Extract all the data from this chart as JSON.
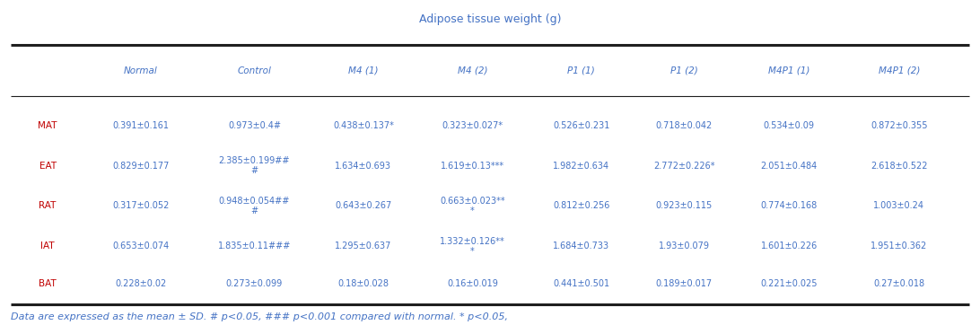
{
  "title": "Adipose tissue weight (g)",
  "col_headers": [
    "",
    "Normal",
    "Control",
    "M4 (1)",
    "M4 (2)",
    "P1 (1)",
    "P1 (2)",
    "M4P1 (1)",
    "M4P1 (2)"
  ],
  "rows": [
    {
      "label": "MAT",
      "values": [
        "0.391±0.161",
        "0.973±0.4#",
        "0.438±0.137*",
        "0.323±0.027*",
        "0.526±0.231",
        "0.718±0.042",
        "0.534±0.09",
        "0.872±0.355"
      ]
    },
    {
      "label": "EAT",
      "values": [
        "0.829±0.177",
        "2.385±0.199##\n#",
        "1.634±0.693",
        "1.619±0.13***",
        "1.982±0.634",
        "2.772±0.226*",
        "2.051±0.484",
        "2.618±0.522"
      ]
    },
    {
      "label": "RAT",
      "values": [
        "0.317±0.052",
        "0.948±0.054##\n#",
        "0.643±0.267",
        "0.663±0.023**\n*",
        "0.812±0.256",
        "0.923±0.115",
        "0.774±0.168",
        "1.003±0.24"
      ]
    },
    {
      "label": "IAT",
      "values": [
        "0.653±0.074",
        "1.835±0.11###",
        "1.295±0.637",
        "1.332±0.126**\n*",
        "1.684±0.733",
        "1.93±0.079",
        "1.601±0.226",
        "1.951±0.362"
      ]
    },
    {
      "label": "BAT",
      "values": [
        "0.228±0.02",
        "0.273±0.099",
        "0.18±0.028",
        "0.16±0.019",
        "0.441±0.501",
        "0.189±0.017",
        "0.221±0.025",
        "0.27±0.018"
      ]
    }
  ],
  "footer": "Data are expressed as the mean ± SD. # p<0.05, ### p<0.001 compared with normal. * p<0.05,",
  "text_color": "#4472c4",
  "label_color": "#c00000",
  "header_color": "#4472c4",
  "bg_color": "#ffffff",
  "dark_bar_color": "#1f1f1f",
  "footer_color": "#4472c4"
}
